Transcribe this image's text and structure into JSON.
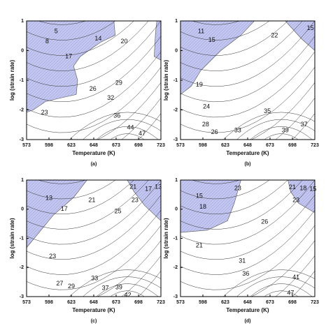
{
  "chart_data": [
    {
      "type": "contour",
      "caption": "(a)",
      "x_label": "Temperature (K)",
      "y_label": "log (strain rate)",
      "xlim": [
        573,
        723
      ],
      "xticks": [
        573,
        598,
        623,
        648,
        673,
        698,
        723
      ],
      "ylim": [
        -3,
        1
      ],
      "yticks": [
        -3,
        -2,
        -1,
        0,
        1
      ],
      "contour_labels": [
        {
          "value": 5,
          "x": 606,
          "y": 0.65
        },
        {
          "value": 8,
          "x": 596,
          "y": 0.3
        },
        {
          "value": 14,
          "x": 653,
          "y": 0.4
        },
        {
          "value": 20,
          "x": 682,
          "y": 0.3
        },
        {
          "value": 17,
          "x": 620,
          "y": -0.2
        },
        {
          "value": 26,
          "x": 647,
          "y": -1.3
        },
        {
          "value": 29,
          "x": 676,
          "y": -1.1
        },
        {
          "value": 32,
          "x": 667,
          "y": -1.6
        },
        {
          "value": 23,
          "x": 593,
          "y": -2.1
        },
        {
          "value": 36,
          "x": 674,
          "y": -2.2
        },
        {
          "value": 44,
          "x": 689,
          "y": -2.6
        },
        {
          "value": 47,
          "x": 702,
          "y": -2.8
        }
      ]
    },
    {
      "type": "contour",
      "caption": "(b)",
      "x_label": "Temperature (K)",
      "y_label": "log (strain rate)",
      "xlim": [
        573,
        723
      ],
      "xticks": [
        573,
        598,
        623,
        648,
        673,
        698,
        723
      ],
      "ylim": [
        -3,
        1
      ],
      "yticks": [
        -3,
        -2,
        -1,
        0,
        1
      ],
      "contour_labels": [
        {
          "value": 11,
          "x": 596,
          "y": 0.65
        },
        {
          "value": 15,
          "x": 718,
          "y": 0.75
        },
        {
          "value": 15,
          "x": 608,
          "y": 0.35
        },
        {
          "value": 22,
          "x": 678,
          "y": 0.5
        },
        {
          "value": 19,
          "x": 594,
          "y": -1.15
        },
        {
          "value": 24,
          "x": 602,
          "y": -1.9
        },
        {
          "value": 28,
          "x": 601,
          "y": -2.5
        },
        {
          "value": 26,
          "x": 611,
          "y": -2.75
        },
        {
          "value": 33,
          "x": 637,
          "y": -2.7
        },
        {
          "value": 35,
          "x": 670,
          "y": -2.05
        },
        {
          "value": 39,
          "x": 690,
          "y": -2.7
        },
        {
          "value": 37,
          "x": 711,
          "y": -2.5
        }
      ]
    },
    {
      "type": "contour",
      "caption": "(c)",
      "x_label": "Temperature (K)",
      "y_label": "log (strain rate)",
      "xlim": [
        573,
        723
      ],
      "xticks": [
        573,
        598,
        623,
        648,
        673,
        698,
        723
      ],
      "ylim": [
        -3,
        1
      ],
      "yticks": [
        -3,
        -2,
        -1,
        0,
        1
      ],
      "contour_labels": [
        {
          "value": 13,
          "x": 598,
          "y": 0.38
        },
        {
          "value": 17,
          "x": 615,
          "y": 0
        },
        {
          "value": 21,
          "x": 646,
          "y": 0.3
        },
        {
          "value": 25,
          "x": 675,
          "y": -0.08
        },
        {
          "value": 21,
          "x": 692,
          "y": 0.76
        },
        {
          "value": 17,
          "x": 709,
          "y": 0.69
        },
        {
          "value": 13,
          "x": 720,
          "y": 0.76
        },
        {
          "value": 23,
          "x": 694,
          "y": 0.3
        },
        {
          "value": 23,
          "x": 602,
          "y": -1.63
        },
        {
          "value": 27,
          "x": 610,
          "y": -2.56
        },
        {
          "value": 29,
          "x": 623,
          "y": -2.66
        },
        {
          "value": 33,
          "x": 649,
          "y": -2.38
        },
        {
          "value": 37,
          "x": 661,
          "y": -2.71
        },
        {
          "value": 39,
          "x": 676,
          "y": -2.69
        },
        {
          "value": 42,
          "x": 686,
          "y": -2.95
        }
      ]
    },
    {
      "type": "contour",
      "caption": "(d)",
      "x_label": "Temperature (K)",
      "y_label": "log (strain rate)",
      "xlim": [
        573,
        723
      ],
      "xticks": [
        573,
        598,
        623,
        648,
        673,
        698,
        723
      ],
      "ylim": [
        -3,
        1
      ],
      "yticks": [
        -3,
        -2,
        -1,
        0,
        1
      ],
      "contour_labels": [
        {
          "value": 15,
          "x": 594,
          "y": 0.45
        },
        {
          "value": 18,
          "x": 598,
          "y": 0.07
        },
        {
          "value": 23,
          "x": 637,
          "y": 0.71
        },
        {
          "value": 21,
          "x": 698,
          "y": 0.74
        },
        {
          "value": 18,
          "x": 710,
          "y": 0.71
        },
        {
          "value": 15,
          "x": 721,
          "y": 0.69
        },
        {
          "value": 23,
          "x": 702,
          "y": 0.3
        },
        {
          "value": 26,
          "x": 667,
          "y": -0.44
        },
        {
          "value": 21,
          "x": 594,
          "y": -1.25
        },
        {
          "value": 31,
          "x": 642,
          "y": -1.78
        },
        {
          "value": 36,
          "x": 646,
          "y": -2.23
        },
        {
          "value": 41,
          "x": 702,
          "y": -2.35
        },
        {
          "value": 47,
          "x": 696,
          "y": -2.88
        }
      ]
    }
  ]
}
